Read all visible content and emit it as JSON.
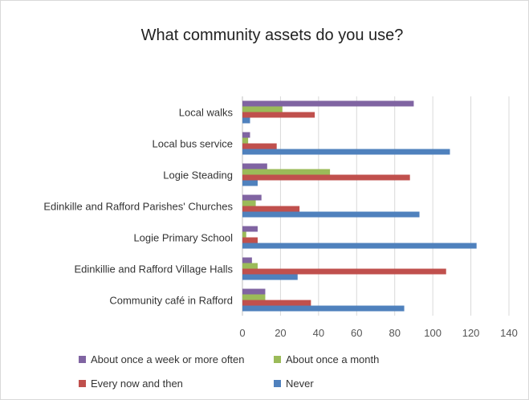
{
  "chart_data": {
    "type": "bar",
    "orientation": "horizontal",
    "title": "What community assets do you use?",
    "xlabel": "",
    "ylabel": "",
    "xlim": [
      0,
      140
    ],
    "x_ticks": [
      0,
      20,
      40,
      60,
      80,
      100,
      120,
      140
    ],
    "grid": "vertical",
    "legend_position": "bottom",
    "categories": [
      "Local  walks",
      "Local bus service",
      "Logie Steading",
      "Edinkille and Rafford Parishes' Churches",
      "Logie Primary School",
      "Edinkillie and Rafford Village Halls",
      "Community café in Rafford"
    ],
    "series": [
      {
        "name": "About once a week or more often",
        "color": "#8064a2",
        "values": [
          90,
          4,
          13,
          10,
          8,
          5,
          12
        ]
      },
      {
        "name": "About once a month",
        "color": "#9bbb59",
        "values": [
          21,
          3,
          46,
          7,
          2,
          8,
          12
        ]
      },
      {
        "name": "Every now and then",
        "color": "#c0504d",
        "values": [
          38,
          18,
          88,
          30,
          8,
          107,
          36
        ]
      },
      {
        "name": "Never",
        "color": "#4f81bd",
        "values": [
          4,
          109,
          8,
          93,
          123,
          29,
          85
        ]
      }
    ]
  }
}
